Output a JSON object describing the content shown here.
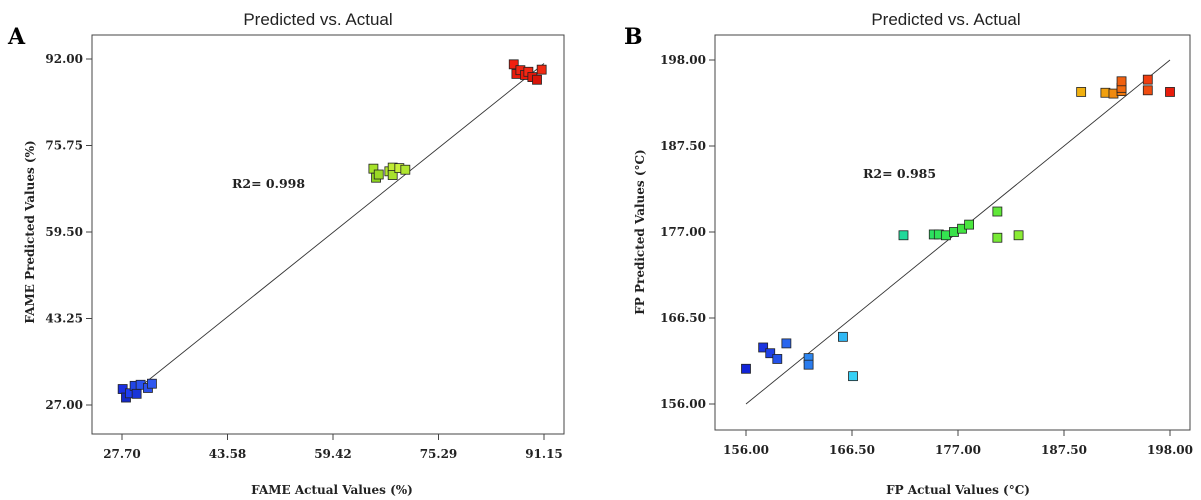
{
  "chart_data": [
    {
      "type": "scatter",
      "panel": "A",
      "title": "Predicted vs. Actual",
      "xlabel": "FAME Actual Values (%)",
      "ylabel": "FAME Predicted Values (%)",
      "annotation": "R2= 0.998",
      "xlim": [
        27.7,
        91.15
      ],
      "ylim": [
        27.0,
        92.0
      ],
      "xticks": [
        "27.70",
        "43.58",
        "59.42",
        "75.29",
        "91.15"
      ],
      "yticks": [
        "27.00",
        "43.25",
        "59.50",
        "75.75",
        "92.00"
      ],
      "fit_line": {
        "x": [
          27.7,
          91.15
        ],
        "y": [
          27.7,
          91.15
        ]
      },
      "grid": false,
      "points": [
        {
          "x": 27.8,
          "y": 30.0,
          "color": "#1a2fe0"
        },
        {
          "x": 28.3,
          "y": 28.4,
          "color": "#1428c8"
        },
        {
          "x": 28.9,
          "y": 29.2,
          "color": "#1e3cf0"
        },
        {
          "x": 29.6,
          "y": 30.6,
          "color": "#2246e6"
        },
        {
          "x": 29.9,
          "y": 29.1,
          "color": "#1a35d8"
        },
        {
          "x": 30.5,
          "y": 30.8,
          "color": "#2a52ee"
        },
        {
          "x": 31.6,
          "y": 30.2,
          "color": "#2c50e8"
        },
        {
          "x": 32.2,
          "y": 31.0,
          "color": "#3058f0"
        },
        {
          "x": 65.5,
          "y": 71.4,
          "color": "#a6e22a"
        },
        {
          "x": 65.9,
          "y": 69.7,
          "color": "#8ed420"
        },
        {
          "x": 66.3,
          "y": 70.3,
          "color": "#9ad826"
        },
        {
          "x": 67.9,
          "y": 70.9,
          "color": "#b4e830"
        },
        {
          "x": 68.4,
          "y": 71.6,
          "color": "#c0ec34"
        },
        {
          "x": 68.4,
          "y": 70.2,
          "color": "#a8e02c"
        },
        {
          "x": 69.4,
          "y": 71.5,
          "color": "#c8f03a"
        },
        {
          "x": 70.3,
          "y": 71.2,
          "color": "#b0e630"
        },
        {
          "x": 86.6,
          "y": 91.0,
          "color": "#f02010"
        },
        {
          "x": 87.0,
          "y": 89.2,
          "color": "#e81c0c"
        },
        {
          "x": 87.6,
          "y": 89.9,
          "color": "#ee2412"
        },
        {
          "x": 88.3,
          "y": 89.0,
          "color": "#e81a0a"
        },
        {
          "x": 88.8,
          "y": 89.6,
          "color": "#f22814"
        },
        {
          "x": 89.4,
          "y": 88.6,
          "color": "#e0180a"
        },
        {
          "x": 90.1,
          "y": 88.1,
          "color": "#d81408"
        },
        {
          "x": 90.8,
          "y": 90.0,
          "color": "#f02a12"
        }
      ]
    },
    {
      "type": "scatter",
      "panel": "B",
      "title": "Predicted vs. Actual",
      "xlabel": "FP Actual Values (°C)",
      "ylabel": "FP Predicted Values (°C)",
      "annotation": "R2= 0.985",
      "xlim": [
        156.0,
        198.0
      ],
      "ylim": [
        156.0,
        198.0
      ],
      "xticks": [
        "156.00",
        "166.50",
        "177.00",
        "187.50",
        "198.00"
      ],
      "yticks": [
        "156.00",
        "166.50",
        "177.00",
        "187.50",
        "198.00"
      ],
      "fit_line": {
        "x": [
          156.0,
          198.0
        ],
        "y": [
          156.0,
          198.0
        ]
      },
      "grid": false,
      "points": [
        {
          "x": 156.0,
          "y": 160.3,
          "color": "#1224d8"
        },
        {
          "x": 157.7,
          "y": 162.9,
          "color": "#1a34e0"
        },
        {
          "x": 158.4,
          "y": 162.2,
          "color": "#1e40e6"
        },
        {
          "x": 159.1,
          "y": 161.5,
          "color": "#2452ea"
        },
        {
          "x": 160.0,
          "y": 163.4,
          "color": "#2a66ee"
        },
        {
          "x": 162.2,
          "y": 161.6,
          "color": "#2c86f0"
        },
        {
          "x": 162.2,
          "y": 160.8,
          "color": "#2a7cee"
        },
        {
          "x": 165.6,
          "y": 164.2,
          "color": "#30b8f4"
        },
        {
          "x": 166.6,
          "y": 159.4,
          "color": "#36d0f6"
        },
        {
          "x": 171.6,
          "y": 176.6,
          "color": "#22d89a"
        },
        {
          "x": 174.6,
          "y": 176.7,
          "color": "#2ce060"
        },
        {
          "x": 175.1,
          "y": 176.7,
          "color": "#30e258"
        },
        {
          "x": 175.8,
          "y": 176.6,
          "color": "#34e450"
        },
        {
          "x": 176.6,
          "y": 177.0,
          "color": "#3ae24a"
        },
        {
          "x": 177.4,
          "y": 177.4,
          "color": "#42e442"
        },
        {
          "x": 178.1,
          "y": 177.9,
          "color": "#4ae63e"
        },
        {
          "x": 180.9,
          "y": 179.5,
          "color": "#60e838"
        },
        {
          "x": 180.9,
          "y": 176.3,
          "color": "#78ea36"
        },
        {
          "x": 183.0,
          "y": 176.6,
          "color": "#8aec34"
        },
        {
          "x": 189.2,
          "y": 194.1,
          "color": "#f0b010"
        },
        {
          "x": 191.6,
          "y": 194.0,
          "color": "#f0a010"
        },
        {
          "x": 192.4,
          "y": 193.9,
          "color": "#f08a10"
        },
        {
          "x": 193.2,
          "y": 194.2,
          "color": "#f07a10"
        },
        {
          "x": 193.2,
          "y": 194.6,
          "color": "#f06a10"
        },
        {
          "x": 193.2,
          "y": 195.4,
          "color": "#f06010"
        },
        {
          "x": 195.8,
          "y": 194.3,
          "color": "#f04c10"
        },
        {
          "x": 195.8,
          "y": 195.6,
          "color": "#f03e10"
        },
        {
          "x": 198.0,
          "y": 194.1,
          "color": "#e81c0c"
        }
      ]
    }
  ]
}
